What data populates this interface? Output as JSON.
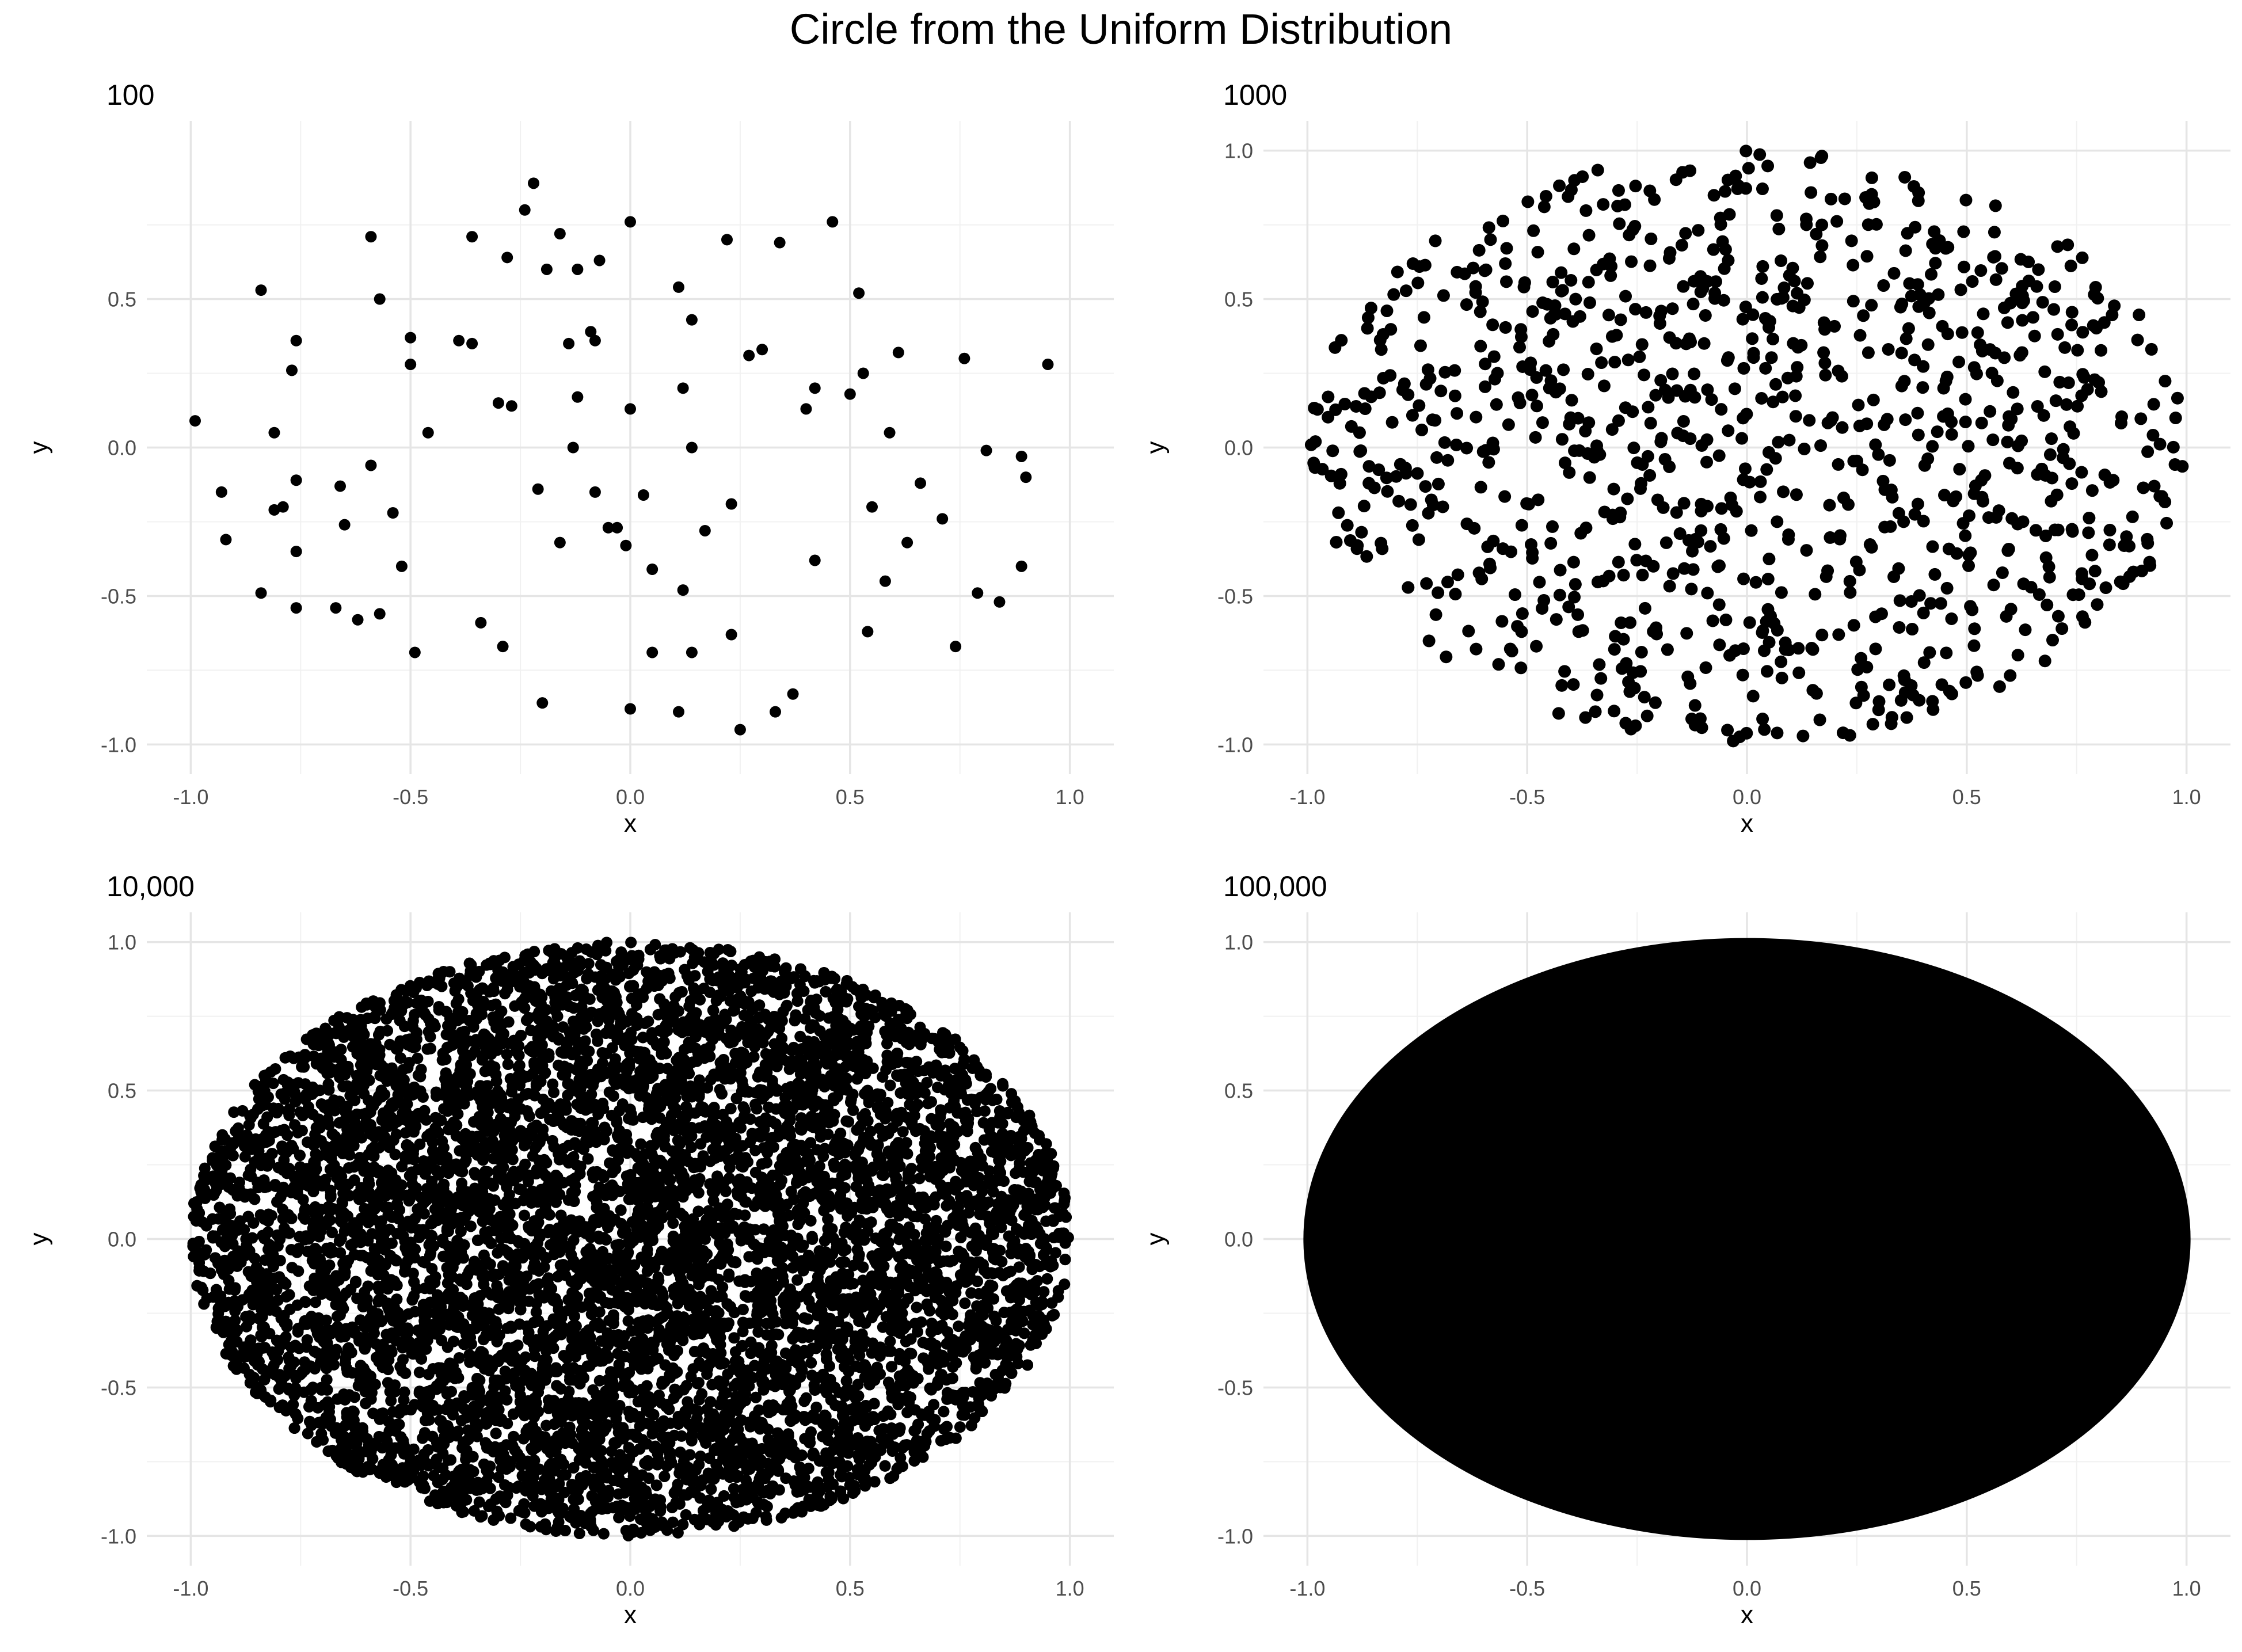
{
  "title": "Circle from the Uniform Distribution",
  "style": {
    "point_color": "#000000",
    "grid_major": "#e5e5e5",
    "grid_minor": "#f1f1f1",
    "tick_text_color": "#4d4d4d"
  },
  "chart_data": [
    {
      "type": "scatter",
      "title": "100",
      "xlabel": "x",
      "ylabel": "y",
      "n_points": 100,
      "xlim": [
        -1.0,
        1.0
      ],
      "ylim": [
        -1.0,
        1.0
      ],
      "xticks": [
        "-1.0",
        "-0.5",
        "0.0",
        "0.5",
        "1.0"
      ],
      "yticks": [
        "-1.0",
        "-0.5",
        "0.0",
        "0.5"
      ],
      "grid": true,
      "points": [
        [
          -0.99,
          0.09
        ],
        [
          -0.93,
          -0.15
        ],
        [
          -0.92,
          -0.31
        ],
        [
          -0.84,
          0.53
        ],
        [
          -0.84,
          -0.49
        ],
        [
          -0.81,
          0.05
        ],
        [
          -0.81,
          -0.21
        ],
        [
          -0.79,
          -0.2
        ],
        [
          -0.77,
          0.26
        ],
        [
          -0.76,
          0.36
        ],
        [
          -0.76,
          -0.11
        ],
        [
          -0.76,
          -0.35
        ],
        [
          -0.76,
          -0.54
        ],
        [
          -0.66,
          -0.13
        ],
        [
          -0.65,
          -0.26
        ],
        [
          -0.67,
          -0.54
        ],
        [
          -0.62,
          -0.58
        ],
        [
          -0.59,
          0.71
        ],
        [
          -0.59,
          -0.06
        ],
        [
          -0.57,
          0.5
        ],
        [
          -0.57,
          -0.56
        ],
        [
          -0.54,
          -0.22
        ],
        [
          -0.52,
          -0.4
        ],
        [
          -0.5,
          0.37
        ],
        [
          -0.5,
          0.28
        ],
        [
          -0.49,
          -0.69
        ],
        [
          -0.46,
          0.05
        ],
        [
          -0.39,
          0.36
        ],
        [
          -0.36,
          0.71
        ],
        [
          -0.36,
          0.35
        ],
        [
          -0.34,
          -0.59
        ],
        [
          -0.3,
          0.15
        ],
        [
          -0.29,
          -0.67
        ],
        [
          -0.28,
          0.64
        ],
        [
          -0.27,
          0.14
        ],
        [
          -0.24,
          0.8
        ],
        [
          -0.22,
          0.89
        ],
        [
          -0.21,
          -0.14
        ],
        [
          -0.2,
          -0.86
        ],
        [
          -0.19,
          0.6
        ],
        [
          -0.16,
          0.72
        ],
        [
          -0.16,
          -0.32
        ],
        [
          -0.14,
          0.35
        ],
        [
          -0.13,
          0.0
        ],
        [
          -0.12,
          0.6
        ],
        [
          -0.12,
          0.17
        ],
        [
          -0.09,
          0.39
        ],
        [
          -0.08,
          0.36
        ],
        [
          -0.08,
          -0.15
        ],
        [
          -0.07,
          0.63
        ],
        [
          -0.05,
          -0.27
        ],
        [
          -0.03,
          -0.27
        ],
        [
          -0.01,
          -0.33
        ],
        [
          0.0,
          0.76
        ],
        [
          0.0,
          0.13
        ],
        [
          0.0,
          -0.88
        ],
        [
          0.03,
          -0.16
        ],
        [
          0.05,
          -0.41
        ],
        [
          0.05,
          -0.69
        ],
        [
          0.11,
          0.54
        ],
        [
          0.11,
          -0.89
        ],
        [
          0.12,
          0.2
        ],
        [
          0.12,
          -0.48
        ],
        [
          0.14,
          0.0
        ],
        [
          0.14,
          0.43
        ],
        [
          0.14,
          -0.69
        ],
        [
          0.17,
          -0.28
        ],
        [
          0.22,
          0.7
        ],
        [
          0.23,
          -0.19
        ],
        [
          0.23,
          -0.63
        ],
        [
          0.25,
          -0.95
        ],
        [
          0.27,
          0.31
        ],
        [
          0.3,
          0.33
        ],
        [
          0.33,
          -0.89
        ],
        [
          0.34,
          0.69
        ],
        [
          0.37,
          -0.83
        ],
        [
          0.4,
          0.13
        ],
        [
          0.42,
          0.2
        ],
        [
          0.42,
          -0.38
        ],
        [
          0.46,
          0.76
        ],
        [
          0.5,
          0.18
        ],
        [
          0.52,
          0.52
        ],
        [
          0.53,
          0.25
        ],
        [
          0.54,
          -0.62
        ],
        [
          0.55,
          -0.2
        ],
        [
          0.58,
          -0.45
        ],
        [
          0.59,
          0.05
        ],
        [
          0.61,
          0.32
        ],
        [
          0.63,
          -0.32
        ],
        [
          0.66,
          -0.12
        ],
        [
          0.71,
          -0.24
        ],
        [
          0.74,
          -0.67
        ],
        [
          0.76,
          0.3
        ],
        [
          0.79,
          -0.49
        ],
        [
          0.81,
          -0.01
        ],
        [
          0.84,
          -0.52
        ],
        [
          0.89,
          -0.03
        ],
        [
          0.89,
          -0.4
        ],
        [
          0.9,
          -0.1
        ],
        [
          0.95,
          0.28
        ]
      ]
    },
    {
      "type": "scatter",
      "title": "1000",
      "xlabel": "x",
      "ylabel": "y",
      "n_points": 1000,
      "xlim": [
        -1.0,
        1.0
      ],
      "ylim": [
        -1.0,
        1.0
      ],
      "xticks": [
        "-1.0",
        "-0.5",
        "0.0",
        "0.5",
        "1.0"
      ],
      "yticks": [
        "-1.0",
        "-0.5",
        "0.0",
        "0.5",
        "1.0"
      ],
      "grid": true,
      "region": "unit disk"
    },
    {
      "type": "scatter",
      "title": "10,000",
      "xlabel": "x",
      "ylabel": "y",
      "n_points": 10000,
      "xlim": [
        -1.0,
        1.0
      ],
      "ylim": [
        -1.0,
        1.0
      ],
      "xticks": [
        "-1.0",
        "-0.5",
        "0.0",
        "0.5",
        "1.0"
      ],
      "yticks": [
        "-1.0",
        "-0.5",
        "0.0",
        "0.5",
        "1.0"
      ],
      "grid": true,
      "region": "unit disk"
    },
    {
      "type": "scatter",
      "title": "100,000",
      "xlabel": "x",
      "ylabel": "y",
      "n_points": 100000,
      "xlim": [
        -1.0,
        1.0
      ],
      "ylim": [
        -1.0,
        1.0
      ],
      "xticks": [
        "-1.0",
        "-0.5",
        "0.0",
        "0.5",
        "1.0"
      ],
      "yticks": [
        "-1.0",
        "-0.5",
        "0.0",
        "0.5",
        "1.0"
      ],
      "grid": true,
      "region": "unit disk"
    }
  ]
}
